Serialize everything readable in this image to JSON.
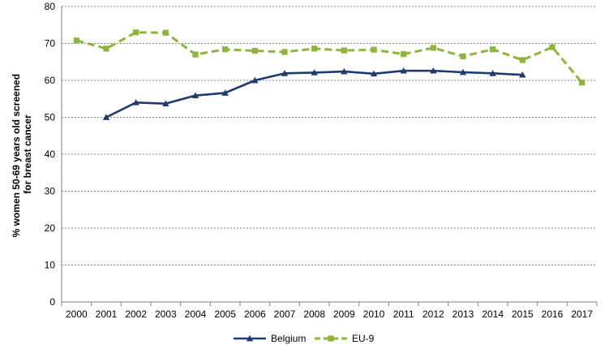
{
  "chart_data": {
    "type": "line",
    "title": "",
    "xlabel": "",
    "ylabel_lines": [
      "% women 50-69 years old screened",
      "for breast cancer"
    ],
    "ylim": [
      0,
      80
    ],
    "yticks": [
      0,
      10,
      20,
      30,
      40,
      50,
      60,
      70,
      80
    ],
    "categories": [
      "2000",
      "2001",
      "2002",
      "2003",
      "2004",
      "2005",
      "2006",
      "2007",
      "2008",
      "2009",
      "2010",
      "2011",
      "2012",
      "2013",
      "2014",
      "2015",
      "2016",
      "2017"
    ],
    "grid": true,
    "legend_position": "bottom",
    "series": [
      {
        "name": "Belgium",
        "color": "#1F3A6E",
        "line_style": "solid",
        "marker": "triangle",
        "values": [
          null,
          50.0,
          54.0,
          53.7,
          55.9,
          56.6,
          60.0,
          61.9,
          62.1,
          62.4,
          61.8,
          62.6,
          62.6,
          62.2,
          61.9,
          61.5,
          null,
          null
        ]
      },
      {
        "name": "EU-9",
        "color": "#8DB53C",
        "line_style": "dashed",
        "marker": "square",
        "values": [
          70.8,
          68.6,
          73.0,
          72.9,
          67.0,
          68.4,
          68.0,
          67.7,
          68.6,
          68.1,
          68.3,
          67.1,
          68.8,
          66.5,
          68.4,
          65.5,
          69.0,
          59.4
        ]
      }
    ]
  }
}
